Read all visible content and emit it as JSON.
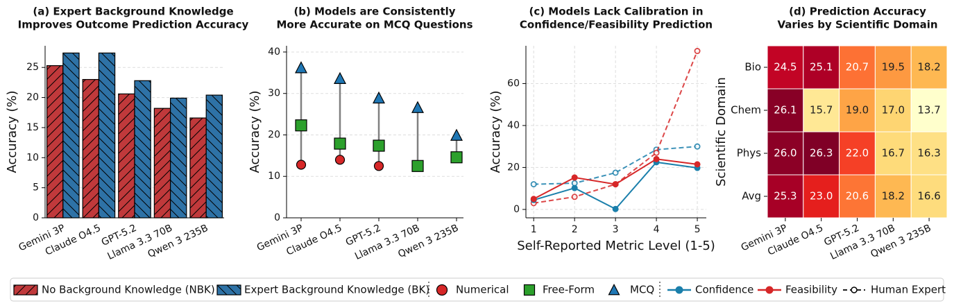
{
  "chart_data": [
    {
      "type": "bar",
      "title": [
        "(a) Expert Background Knowledge",
        "Improves Outcome Prediction Accuracy"
      ],
      "categories": [
        "Gemini 3P",
        "Claude O4.5",
        "GPT-5.2",
        "Llama 3.3 70B",
        "Qwen 3 235B"
      ],
      "ylabel": "Accuracy (%)",
      "series": [
        {
          "name": "No Background Knowledge (NBK)",
          "color": "#c0393b",
          "hatch": "/",
          "values": [
            25.3,
            23.0,
            20.6,
            18.2,
            16.6
          ]
        },
        {
          "name": "Expert Background Knowledge (BK)",
          "color": "#2e72a6",
          "hatch": "\\",
          "values": [
            27.4,
            27.4,
            22.8,
            19.9,
            20.4
          ]
        }
      ],
      "ylim": [
        0,
        28.6
      ],
      "yticks": [
        0,
        5,
        10,
        15,
        20,
        25
      ],
      "grid": true
    },
    {
      "type": "dumbbell",
      "title": [
        "(b) Models are Consistently",
        "More Accurate on MCQ Questions"
      ],
      "categories": [
        "Gemini 3P",
        "Claude O4.5",
        "GPT-5.2",
        "Llama 3.3 70B",
        "Qwen 3 235B"
      ],
      "ylabel": "Accuracy (%)",
      "series": [
        {
          "name": "Numerical",
          "color": "#d62728",
          "marker": "circle",
          "values": [
            12.8,
            14.0,
            12.5,
            12.5,
            14.6
          ]
        },
        {
          "name": "Free-Form",
          "color": "#2ca02c",
          "marker": "square",
          "values": [
            22.3,
            17.9,
            17.4,
            12.5,
            14.6
          ]
        },
        {
          "name": "MCQ",
          "color": "#1f77b4",
          "marker": "triangle",
          "values": [
            36.2,
            33.6,
            28.9,
            26.6,
            19.9
          ]
        }
      ],
      "ylim": [
        0,
        41.5
      ],
      "yticks": [
        0,
        10,
        20,
        30,
        40
      ],
      "grid": true
    },
    {
      "type": "line",
      "title": [
        "(c) Models Lack Calibration in",
        "Confidence/Feasibility Prediction"
      ],
      "x": [
        1,
        2,
        3,
        4,
        5
      ],
      "xlabel": "Self-Reported Metric Level (1-5)",
      "ylabel": "Accuracy (%)",
      "series": [
        {
          "name": "Confidence",
          "color": "#1a7fab",
          "values": [
            4.5,
            10.2,
            0.2,
            22.5,
            19.8
          ],
          "human_values": [
            12.0,
            12.5,
            17.5,
            28.5,
            30.0
          ]
        },
        {
          "name": "Feasibility",
          "color": "#d62728",
          "values": [
            5.0,
            15.2,
            12.0,
            24.0,
            21.5
          ],
          "human_values": [
            3.0,
            6.0,
            12.0,
            27.0,
            75.5
          ]
        }
      ],
      "human_label": "Human Expert",
      "xlim": [
        0.81,
        5.22
      ],
      "xticks": [
        1,
        2,
        3,
        4,
        5
      ],
      "ylim": [
        -4,
        78
      ],
      "yticks": [
        0,
        20,
        40,
        60
      ],
      "grid": true
    },
    {
      "type": "heatmap",
      "title": [
        "(d) Prediction Accuracy",
        "Varies by Scientific Domain"
      ],
      "columns": [
        "Gemini 3P",
        "Claude O4.5",
        "GPT-5.2",
        "Llama 3.3 70B",
        "Qwen 3 235B"
      ],
      "rows": [
        "Bio",
        "Chem",
        "Phys",
        "Avg"
      ],
      "ylabel": "Scientific Domain",
      "values": [
        [
          24.5,
          25.1,
          20.7,
          19.5,
          18.2
        ],
        [
          26.1,
          15.7,
          19.0,
          17.0,
          13.7
        ],
        [
          26.0,
          26.3,
          22.0,
          16.7,
          16.3
        ],
        [
          25.3,
          23.0,
          20.6,
          18.2,
          16.6
        ]
      ],
      "value_labels": [
        [
          "24.5",
          "25.1",
          "20.7",
          "19.5",
          "18.2"
        ],
        [
          "26.1",
          "15.7",
          "19.0",
          "17.0",
          "13.7"
        ],
        [
          "26.0",
          "26.3",
          "22.0",
          "16.7",
          "16.3"
        ],
        [
          "25.3",
          "23.0",
          "20.6",
          "18.2",
          "16.6"
        ]
      ],
      "colormap": "YlOrRd"
    }
  ]
}
